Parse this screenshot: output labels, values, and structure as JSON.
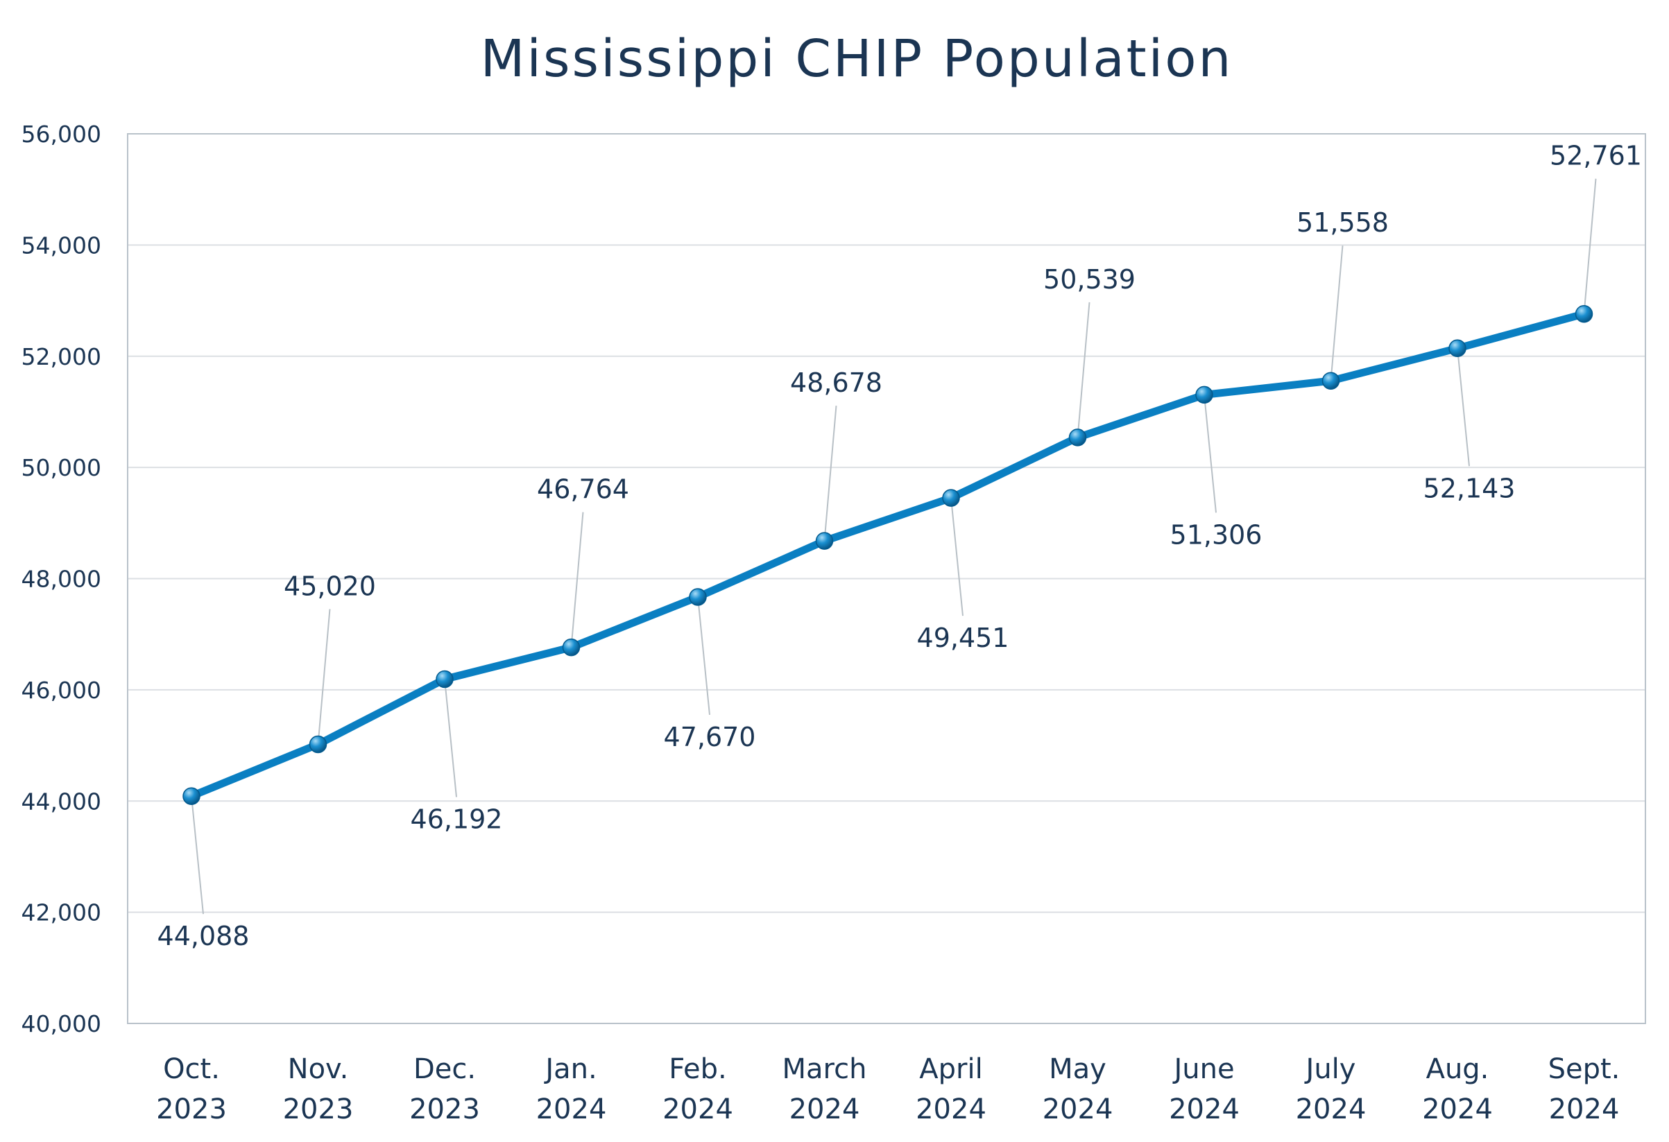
{
  "chart_data": {
    "type": "line",
    "title": "Mississippi CHIP Population",
    "xlabel": "",
    "ylabel": "",
    "categories": [
      [
        "Oct.",
        "2023"
      ],
      [
        "Nov.",
        "2023"
      ],
      [
        "Dec.",
        "2023"
      ],
      [
        "Jan.",
        "2024"
      ],
      [
        "Feb.",
        "2024"
      ],
      [
        "March",
        "2024"
      ],
      [
        "April",
        "2024"
      ],
      [
        "May",
        "2024"
      ],
      [
        "June",
        "2024"
      ],
      [
        "July",
        "2024"
      ],
      [
        "Aug.",
        "2024"
      ],
      [
        "Sept.",
        "2024"
      ]
    ],
    "values": [
      44088,
      45020,
      46192,
      46764,
      47670,
      48678,
      49451,
      50539,
      51306,
      51558,
      52143,
      52761
    ],
    "data_labels": [
      "44,088",
      "45,020",
      "46,192",
      "46,764",
      "47,670",
      "48,678",
      "49,451",
      "50,539",
      "51,306",
      "51,558",
      "52,143",
      "52,761"
    ],
    "label_position": [
      "below",
      "above",
      "below",
      "above",
      "below",
      "above",
      "below",
      "above",
      "below",
      "above",
      "below",
      "above"
    ],
    "ylim": [
      40000,
      56000
    ],
    "yticks": [
      40000,
      42000,
      44000,
      46000,
      48000,
      50000,
      52000,
      54000,
      56000
    ],
    "ytick_labels": [
      "40,000",
      "42,000",
      "44,000",
      "46,000",
      "48,000",
      "50,000",
      "52,000",
      "54,000",
      "56,000"
    ],
    "grid": true,
    "legend": "none",
    "colors": {
      "line": "#0a7fc2",
      "marker": "#1a8fd0",
      "text": "#1b3553",
      "grid": "#dcdfe3",
      "axis": "#b9c2ca",
      "leader": "#b8c0c6"
    }
  }
}
